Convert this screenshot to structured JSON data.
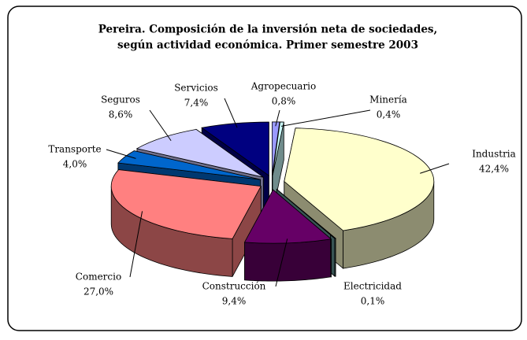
{
  "chart_data": {
    "type": "pie3d",
    "title_lines": [
      "Pereira. Composición de la inversión neta de sociedades,",
      "según actividad económica. Primer semestre 2003"
    ],
    "categories": [
      "Agropecuario",
      "Minería",
      "Industria",
      "Electricidad",
      "Construcción",
      "Comercio",
      "Transporte",
      "Seguros",
      "Servicios"
    ],
    "values": [
      0.8,
      0.4,
      42.4,
      0.1,
      9.4,
      27.0,
      4.0,
      8.6,
      7.4
    ],
    "value_labels": [
      "0,8%",
      "0,4%",
      "42,4%",
      "0,1%",
      "9,4%",
      "27,0%",
      "4,0%",
      "8,6%",
      "7,4%"
    ],
    "colors": [
      "#9999ff",
      "#ccffff",
      "#ffffcc",
      "#669999",
      "#660066",
      "#ff8080",
      "#0066cc",
      "#ccccff",
      "#000080"
    ]
  }
}
